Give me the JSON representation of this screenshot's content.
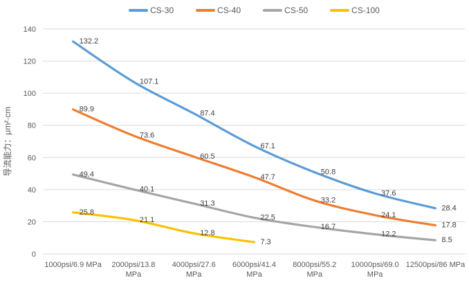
{
  "chart_data": {
    "type": "line",
    "title": "",
    "xlabel": "",
    "ylabel": "导流能力：μm²·cm",
    "ylim": [
      0,
      140
    ],
    "y_ticks": [
      0,
      20,
      40,
      60,
      80,
      100,
      120,
      140
    ],
    "grid": true,
    "smoothed_lines": true,
    "data_labels": true,
    "legend_position": "top",
    "categories": [
      "1000psi/6.9 MPa",
      "2000psi/13.8\nMPa",
      "4000psi/27.6\nMPa",
      "6000psi/41.4\nMPa",
      "8000psi/55.2\nMPa",
      "10000psi/69.0\nMPa",
      "12500psi/86 MPa"
    ],
    "series": [
      {
        "name": "CS-30",
        "color": "#5B9BD5",
        "values": [
          132.2,
          107.1,
          87.4,
          67.1,
          50.8,
          37.6,
          28.4
        ]
      },
      {
        "name": "CS-40",
        "color": "#ED7D31",
        "values": [
          89.9,
          73.6,
          60.5,
          47.7,
          33.2,
          24.1,
          17.8
        ]
      },
      {
        "name": "CS-50",
        "color": "#A5A5A5",
        "values": [
          49.4,
          40.1,
          31.3,
          22.5,
          16.7,
          12.2,
          8.5
        ]
      },
      {
        "name": "CS-100",
        "color": "#FFC000",
        "values": [
          25.8,
          21.1,
          12.8,
          7.3
        ]
      }
    ]
  },
  "styles": {
    "background": "#FFFFFF",
    "grid_color": "#D9D9D9",
    "axis_line_color": "#D9D9D9",
    "tick_label_color": "#595959",
    "axis_title_color": "#595959",
    "data_label_color": "#404040",
    "legend_text_color": "#595959"
  }
}
